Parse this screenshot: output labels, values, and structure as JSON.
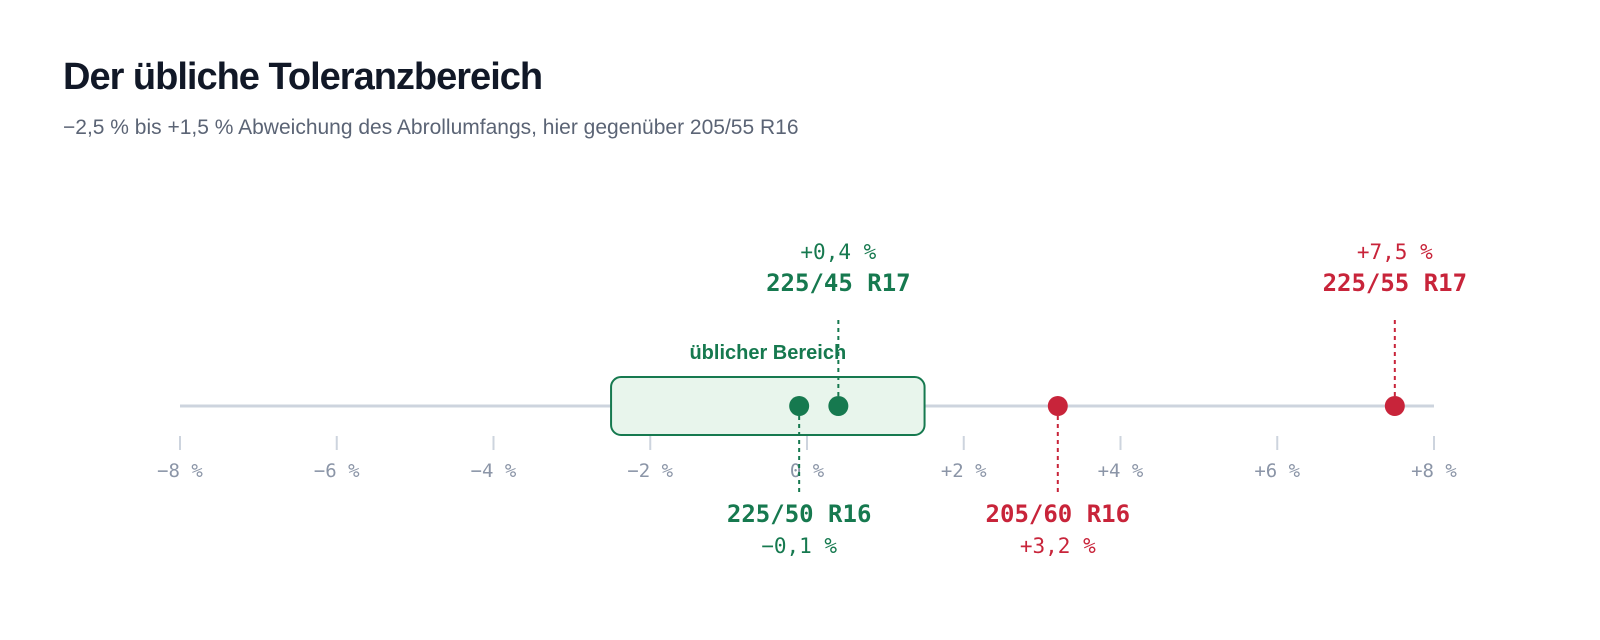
{
  "header": {
    "title": "Der übliche Toleranzbereich",
    "subtitle": "−2,5 % bis +1,5 % Abweichung des Abrollumfangs, hier gegenüber 205/55 R16"
  },
  "chart_data": {
    "type": "scatter",
    "title": "Der übliche Toleranzbereich",
    "subtitle": "−2,5 % bis +1,5 % Abweichung des Abrollumfangs, hier gegenüber 205/55 R16",
    "xlim": [
      -8,
      8
    ],
    "ticks": [
      -8,
      -6,
      -4,
      -2,
      0,
      2,
      4,
      6,
      8
    ],
    "tick_labels": [
      "−8 %",
      "−6 %",
      "−4 %",
      "−2 %",
      "0 %",
      "+2 %",
      "+4 %",
      "+6 %",
      "+8 %"
    ],
    "tolerance_range": {
      "min": -2.5,
      "max": 1.5,
      "label": "üblicher Bereich",
      "color": "#16794f",
      "fill": "#e8f5ec"
    },
    "points": [
      {
        "name": "225/50 R16",
        "value": -0.1,
        "value_label": "−0,1 %",
        "in_range": true,
        "label_position": "below"
      },
      {
        "name": "225/45 R17",
        "value": 0.4,
        "value_label": "+0,4 %",
        "in_range": true,
        "label_position": "above"
      },
      {
        "name": "205/60 R16",
        "value": 3.2,
        "value_label": "+3,2 %",
        "in_range": false,
        "label_position": "below"
      },
      {
        "name": "225/55 R17",
        "value": 7.5,
        "value_label": "+7,5 %",
        "in_range": false,
        "label_position": "above"
      }
    ],
    "colors": {
      "in_range": "#16794f",
      "out_of_range": "#c8243a",
      "axis": "#cdd4de",
      "tick_label": "#8b95a7"
    },
    "grid": false,
    "legend": "none"
  }
}
